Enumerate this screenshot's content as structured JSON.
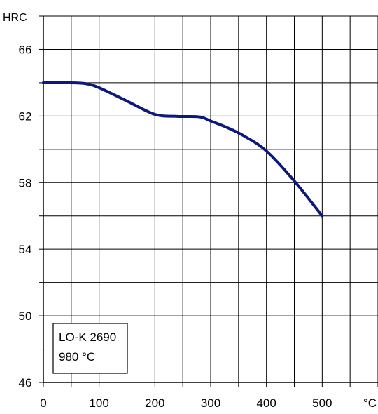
{
  "chart_data": {
    "type": "line",
    "ylabel": "HRC",
    "xlabel": "°C",
    "xlim": [
      0,
      600
    ],
    "ylim": [
      46,
      68
    ],
    "x_ticks": [
      0,
      100,
      200,
      300,
      400,
      500
    ],
    "y_ticks": [
      46,
      50,
      54,
      58,
      62,
      66
    ],
    "grid": true,
    "series": [
      {
        "color": "#0b1a7a",
        "x": [
          0,
          40,
          75,
          100,
          150,
          200,
          240,
          280,
          300,
          330,
          360,
          400,
          450,
          500
        ],
        "y": [
          64,
          64,
          63.95,
          63.7,
          62.9,
          62.1,
          61.98,
          61.95,
          61.7,
          61.3,
          60.8,
          59.9,
          58.1,
          56
        ]
      }
    ],
    "annotation": {
      "lines": [
        "LO-K 2690",
        "980 °C"
      ]
    }
  }
}
